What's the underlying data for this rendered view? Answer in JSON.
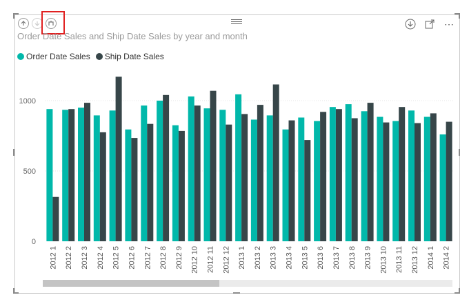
{
  "title": "Order Date Sales and Ship Date Sales by year and month",
  "colors": {
    "order": "#01b8aa",
    "ship": "#374649",
    "highlight": "#e02020"
  },
  "toolbar": {
    "left_icons": [
      "drill-up-icon",
      "drill-down-icon",
      "expand-hierarchy-icon"
    ],
    "right_icons": [
      "drill-mode-icon",
      "focus-mode-icon",
      "more-options-icon"
    ],
    "more_label": "⋯"
  },
  "chart_data": {
    "type": "bar",
    "title": "Order Date Sales and Ship Date Sales by year and month",
    "xlabel": "",
    "ylabel": "",
    "ylim": [
      0,
      1250
    ],
    "yticks": [
      0,
      500,
      1000
    ],
    "legend_position": "top-left",
    "grid": true,
    "categories": [
      "2012 1",
      "2012 2",
      "2012 3",
      "2012 4",
      "2012 5",
      "2012 6",
      "2012 7",
      "2012 8",
      "2012 9",
      "2012 10",
      "2012 11",
      "2012 12",
      "2013 1",
      "2013 2",
      "2013 3",
      "2013 4",
      "2013 5",
      "2013 6",
      "2013 7",
      "2013 8",
      "2013 9",
      "2013 10",
      "2013 11",
      "2013 12",
      "2014 1",
      "2014 2"
    ],
    "series": [
      {
        "name": "Order Date Sales",
        "color": "#01b8aa",
        "values": [
          940,
          935,
          950,
          895,
          930,
          795,
          965,
          1000,
          825,
          1030,
          945,
          935,
          1045,
          865,
          895,
          795,
          880,
          855,
          955,
          975,
          925,
          885,
          855,
          930,
          885,
          760
        ]
      },
      {
        "name": "Ship Date Sales",
        "color": "#374649",
        "values": [
          315,
          940,
          985,
          775,
          1170,
          735,
          835,
          1040,
          785,
          965,
          1070,
          830,
          905,
          970,
          1115,
          860,
          720,
          920,
          940,
          875,
          985,
          845,
          955,
          840,
          910,
          850
        ]
      }
    ]
  }
}
